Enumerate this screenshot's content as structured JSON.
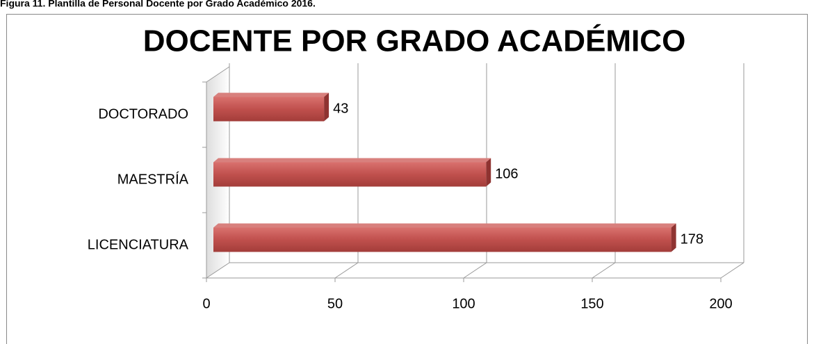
{
  "caption": "Figura 11. Plantilla de Personal Docente por Grado Académico 2016.",
  "chart_data": {
    "type": "bar",
    "orientation": "horizontal",
    "title": "DOCENTE POR GRADO ACADÉMICO",
    "categories": [
      "LICENCIATURA",
      "MAESTRÍA",
      "DOCTORADO"
    ],
    "values": [
      178,
      106,
      43
    ],
    "color": "#c0504d",
    "xlim": [
      0,
      200
    ],
    "xticks": [
      0,
      50,
      100,
      150,
      200
    ],
    "grid": true
  }
}
